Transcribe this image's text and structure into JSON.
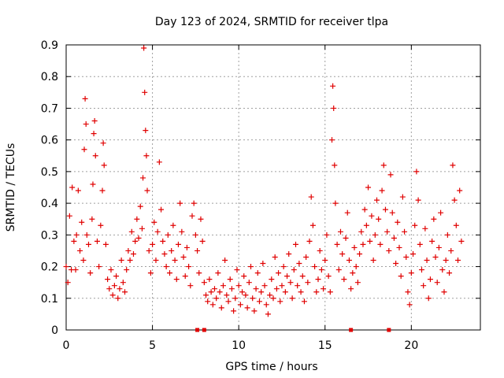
{
  "chart_data": {
    "type": "scatter",
    "title": "Day 123 of 2024, SRMTID for receiver tlpa",
    "xlabel": "GPS time / hours",
    "ylabel": "SRMTID / TECUs",
    "xlim": [
      0,
      24
    ],
    "ylim": [
      0,
      0.9
    ],
    "xticks": [
      0,
      5,
      10,
      15,
      20
    ],
    "xtick_labels": [
      "0",
      "5",
      "10",
      "15",
      "20"
    ],
    "yticks": [
      0,
      0.1,
      0.2,
      0.3,
      0.4,
      0.5,
      0.6,
      0.7,
      0.8,
      0.9
    ],
    "ytick_labels": [
      "0",
      "0.1",
      "0.2",
      "0.3",
      "0.4",
      "0.5",
      "0.6",
      "0.7",
      "0.8",
      "0.9"
    ],
    "grid": true,
    "marker": "+",
    "color": "#e00000",
    "series": [
      {
        "name": "SRMTID",
        "points": [
          [
            0.0,
            0.2
          ],
          [
            0.1,
            0.15
          ],
          [
            0.2,
            0.36
          ],
          [
            0.3,
            0.19
          ],
          [
            0.35,
            0.45
          ],
          [
            0.45,
            0.28
          ],
          [
            0.55,
            0.19
          ],
          [
            0.6,
            0.3
          ],
          [
            0.7,
            0.44
          ],
          [
            0.8,
            0.25
          ],
          [
            0.9,
            0.34
          ],
          [
            1.0,
            0.22
          ],
          [
            1.05,
            0.57
          ],
          [
            1.1,
            0.73
          ],
          [
            1.15,
            0.65
          ],
          [
            1.2,
            0.3
          ],
          [
            1.3,
            0.27
          ],
          [
            1.4,
            0.18
          ],
          [
            1.5,
            0.35
          ],
          [
            1.55,
            0.46
          ],
          [
            1.6,
            0.62
          ],
          [
            1.65,
            0.66
          ],
          [
            1.7,
            0.55
          ],
          [
            1.8,
            0.28
          ],
          [
            1.9,
            0.2
          ],
          [
            2.0,
            0.33
          ],
          [
            2.1,
            0.44
          ],
          [
            2.15,
            0.59
          ],
          [
            2.2,
            0.52
          ],
          [
            2.3,
            0.27
          ],
          [
            2.4,
            0.16
          ],
          [
            2.5,
            0.13
          ],
          [
            2.6,
            0.19
          ],
          [
            2.7,
            0.11
          ],
          [
            2.8,
            0.14
          ],
          [
            2.9,
            0.17
          ],
          [
            3.0,
            0.1
          ],
          [
            3.1,
            0.13
          ],
          [
            3.2,
            0.22
          ],
          [
            3.3,
            0.15
          ],
          [
            3.4,
            0.12
          ],
          [
            3.5,
            0.19
          ],
          [
            3.6,
            0.25
          ],
          [
            3.7,
            0.22
          ],
          [
            3.8,
            0.31
          ],
          [
            3.9,
            0.24
          ],
          [
            4.0,
            0.28
          ],
          [
            4.1,
            0.35
          ],
          [
            4.2,
            0.29
          ],
          [
            4.3,
            0.39
          ],
          [
            4.4,
            0.32
          ],
          [
            4.45,
            0.48
          ],
          [
            4.5,
            0.89
          ],
          [
            4.55,
            0.75
          ],
          [
            4.6,
            0.63
          ],
          [
            4.65,
            0.55
          ],
          [
            4.7,
            0.44
          ],
          [
            4.8,
            0.25
          ],
          [
            4.9,
            0.18
          ],
          [
            5.0,
            0.27
          ],
          [
            5.1,
            0.34
          ],
          [
            5.2,
            0.22
          ],
          [
            5.3,
            0.31
          ],
          [
            5.4,
            0.53
          ],
          [
            5.5,
            0.38
          ],
          [
            5.6,
            0.28
          ],
          [
            5.7,
            0.24
          ],
          [
            5.8,
            0.2
          ],
          [
            5.9,
            0.3
          ],
          [
            6.0,
            0.18
          ],
          [
            6.1,
            0.25
          ],
          [
            6.2,
            0.33
          ],
          [
            6.3,
            0.22
          ],
          [
            6.4,
            0.16
          ],
          [
            6.5,
            0.27
          ],
          [
            6.6,
            0.4
          ],
          [
            6.7,
            0.31
          ],
          [
            6.8,
            0.23
          ],
          [
            6.9,
            0.17
          ],
          [
            7.0,
            0.26
          ],
          [
            7.1,
            0.2
          ],
          [
            7.2,
            0.14
          ],
          [
            7.3,
            0.36
          ],
          [
            7.4,
            0.4
          ],
          [
            7.5,
            0.3
          ],
          [
            7.6,
            0.25
          ],
          [
            7.7,
            0.18
          ],
          [
            7.8,
            0.35
          ],
          [
            7.9,
            0.28
          ],
          [
            8.0,
            0.15
          ],
          [
            8.1,
            0.11
          ],
          [
            8.2,
            0.09
          ],
          [
            8.3,
            0.16
          ],
          [
            8.4,
            0.12
          ],
          [
            8.5,
            0.08
          ],
          [
            8.6,
            0.13
          ],
          [
            8.7,
            0.1
          ],
          [
            8.8,
            0.18
          ],
          [
            8.9,
            0.12
          ],
          [
            9.0,
            0.07
          ],
          [
            9.1,
            0.14
          ],
          [
            9.2,
            0.22
          ],
          [
            9.3,
            0.11
          ],
          [
            9.4,
            0.09
          ],
          [
            9.5,
            0.16
          ],
          [
            9.6,
            0.13
          ],
          [
            9.7,
            0.06
          ],
          [
            9.8,
            0.1
          ],
          [
            9.9,
            0.19
          ],
          [
            10.0,
            0.14
          ],
          [
            10.1,
            0.08
          ],
          [
            10.2,
            0.12
          ],
          [
            10.3,
            0.17
          ],
          [
            10.4,
            0.11
          ],
          [
            10.5,
            0.07
          ],
          [
            10.6,
            0.15
          ],
          [
            10.7,
            0.2
          ],
          [
            10.8,
            0.1
          ],
          [
            10.9,
            0.06
          ],
          [
            11.0,
            0.13
          ],
          [
            11.1,
            0.18
          ],
          [
            11.2,
            0.09
          ],
          [
            11.3,
            0.12
          ],
          [
            11.4,
            0.21
          ],
          [
            11.5,
            0.14
          ],
          [
            11.6,
            0.08
          ],
          [
            11.7,
            0.05
          ],
          [
            11.8,
            0.11
          ],
          [
            11.9,
            0.16
          ],
          [
            12.0,
            0.1
          ],
          [
            12.1,
            0.23
          ],
          [
            12.2,
            0.13
          ],
          [
            12.3,
            0.18
          ],
          [
            12.4,
            0.09
          ],
          [
            12.5,
            0.14
          ],
          [
            12.6,
            0.2
          ],
          [
            12.7,
            0.12
          ],
          [
            12.8,
            0.17
          ],
          [
            12.9,
            0.24
          ],
          [
            13.0,
            0.15
          ],
          [
            13.1,
            0.1
          ],
          [
            13.2,
            0.19
          ],
          [
            13.3,
            0.27
          ],
          [
            13.4,
            0.14
          ],
          [
            13.5,
            0.21
          ],
          [
            13.6,
            0.12
          ],
          [
            13.7,
            0.17
          ],
          [
            13.8,
            0.09
          ],
          [
            13.9,
            0.23
          ],
          [
            14.0,
            0.15
          ],
          [
            14.1,
            0.28
          ],
          [
            14.2,
            0.42
          ],
          [
            14.3,
            0.33
          ],
          [
            14.4,
            0.2
          ],
          [
            14.5,
            0.12
          ],
          [
            14.6,
            0.16
          ],
          [
            14.7,
            0.25
          ],
          [
            14.8,
            0.19
          ],
          [
            14.9,
            0.13
          ],
          [
            15.0,
            0.22
          ],
          [
            15.1,
            0.3
          ],
          [
            15.2,
            0.17
          ],
          [
            15.3,
            0.12
          ],
          [
            15.4,
            0.6
          ],
          [
            15.45,
            0.77
          ],
          [
            15.5,
            0.7
          ],
          [
            15.55,
            0.52
          ],
          [
            15.6,
            0.4
          ],
          [
            15.7,
            0.27
          ],
          [
            15.8,
            0.19
          ],
          [
            15.9,
            0.31
          ],
          [
            16.0,
            0.24
          ],
          [
            16.1,
            0.16
          ],
          [
            16.2,
            0.29
          ],
          [
            16.3,
            0.37
          ],
          [
            16.4,
            0.22
          ],
          [
            16.5,
            0.13
          ],
          [
            16.6,
            0.18
          ],
          [
            16.7,
            0.26
          ],
          [
            16.8,
            0.2
          ],
          [
            16.9,
            0.15
          ],
          [
            17.0,
            0.24
          ],
          [
            17.1,
            0.31
          ],
          [
            17.2,
            0.27
          ],
          [
            17.3,
            0.38
          ],
          [
            17.4,
            0.33
          ],
          [
            17.5,
            0.45
          ],
          [
            17.6,
            0.28
          ],
          [
            17.7,
            0.36
          ],
          [
            17.8,
            0.22
          ],
          [
            17.9,
            0.3
          ],
          [
            18.0,
            0.41
          ],
          [
            18.1,
            0.35
          ],
          [
            18.2,
            0.27
          ],
          [
            18.3,
            0.44
          ],
          [
            18.4,
            0.52
          ],
          [
            18.5,
            0.38
          ],
          [
            18.6,
            0.31
          ],
          [
            18.7,
            0.25
          ],
          [
            18.8,
            0.49
          ],
          [
            18.9,
            0.37
          ],
          [
            19.0,
            0.29
          ],
          [
            19.1,
            0.21
          ],
          [
            19.2,
            0.34
          ],
          [
            19.3,
            0.26
          ],
          [
            19.4,
            0.17
          ],
          [
            19.5,
            0.42
          ],
          [
            19.6,
            0.31
          ],
          [
            19.7,
            0.23
          ],
          [
            19.8,
            0.12
          ],
          [
            19.9,
            0.08
          ],
          [
            20.0,
            0.18
          ],
          [
            20.1,
            0.24
          ],
          [
            20.2,
            0.33
          ],
          [
            20.3,
            0.5
          ],
          [
            20.4,
            0.41
          ],
          [
            20.5,
            0.27
          ],
          [
            20.6,
            0.19
          ],
          [
            20.7,
            0.14
          ],
          [
            20.8,
            0.32
          ],
          [
            20.9,
            0.22
          ],
          [
            21.0,
            0.1
          ],
          [
            21.1,
            0.16
          ],
          [
            21.2,
            0.28
          ],
          [
            21.3,
            0.35
          ],
          [
            21.4,
            0.23
          ],
          [
            21.5,
            0.15
          ],
          [
            21.6,
            0.26
          ],
          [
            21.7,
            0.37
          ],
          [
            21.8,
            0.19
          ],
          [
            21.9,
            0.12
          ],
          [
            22.0,
            0.22
          ],
          [
            22.1,
            0.3
          ],
          [
            22.2,
            0.18
          ],
          [
            22.3,
            0.25
          ],
          [
            22.4,
            0.52
          ],
          [
            22.5,
            0.41
          ],
          [
            22.6,
            0.33
          ],
          [
            22.7,
            0.22
          ],
          [
            22.8,
            0.44
          ],
          [
            22.9,
            0.28
          ]
        ]
      }
    ],
    "axis_markers": [
      7.6,
      8.0,
      16.5,
      18.7
    ]
  }
}
